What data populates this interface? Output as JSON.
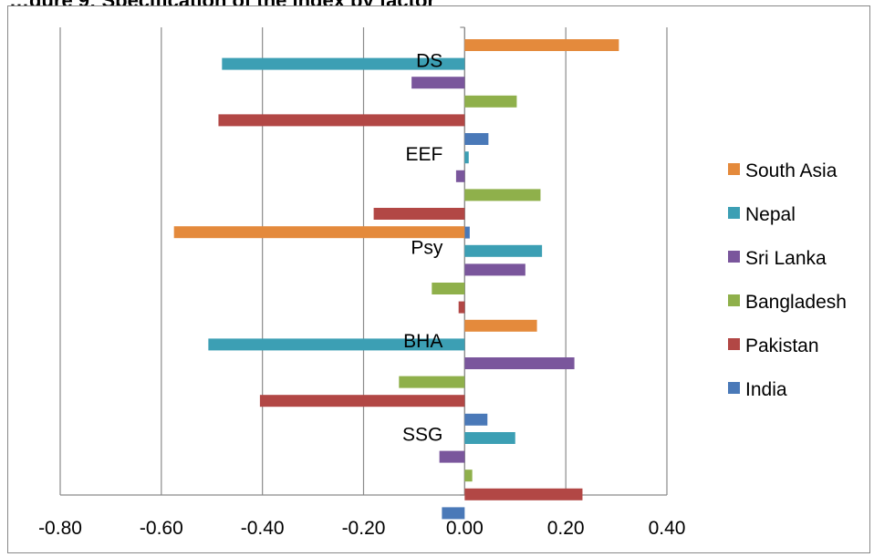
{
  "chart_data": {
    "type": "bar",
    "orientation": "horizontal",
    "title": "",
    "categories": [
      "DS",
      "EEF",
      "Psy",
      "BHA",
      "SSG"
    ],
    "series": [
      {
        "name": "South Asia",
        "color": "#E48A3C",
        "values": [
          0.305,
          null,
          -0.575,
          0.143,
          null
        ]
      },
      {
        "name": "Nepal",
        "color": "#3C9FB4",
        "values": [
          -0.48,
          0.008,
          0.153,
          -0.507,
          0.1
        ]
      },
      {
        "name": "Sri Lanka",
        "color": "#7A569C",
        "values": [
          -0.105,
          -0.017,
          0.12,
          0.217,
          -0.05
        ]
      },
      {
        "name": "Bangladesh",
        "color": "#8FB04B",
        "values": [
          0.103,
          0.15,
          -0.065,
          -0.13,
          0.015
        ]
      },
      {
        "name": "Pakistan",
        "color": "#B24745",
        "values": [
          -0.487,
          -0.18,
          -0.012,
          -0.405,
          0.233
        ]
      },
      {
        "name": "India",
        "color": "#4A79B8",
        "values": [
          0.047,
          0.01,
          null,
          0.045,
          -0.045
        ]
      }
    ],
    "xlim": [
      -0.8,
      0.4
    ],
    "xticks": [
      "-0.80",
      "-0.60",
      "-0.40",
      "-0.20",
      "0.00",
      "0.20",
      "0.40"
    ],
    "grid": "vertical",
    "legend": "right"
  }
}
